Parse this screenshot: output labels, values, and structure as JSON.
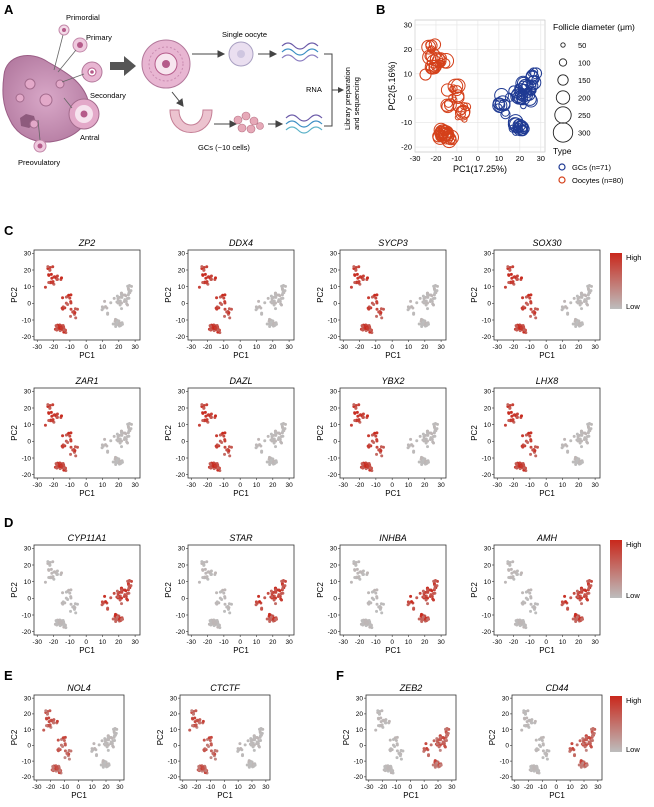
{
  "panel_letters": {
    "a": "A",
    "b": "B",
    "c": "C",
    "d": "D",
    "e": "E",
    "f": "F"
  },
  "schematic": {
    "primordial": "Primordial",
    "primary": "Primary",
    "secondary": "Secondary",
    "antral": "Antral",
    "preovulatory": "Preovulatory",
    "single_oocyte": "Single oocyte",
    "gcs": "GCs (~10 cells)",
    "rna": "RNA",
    "library_line1": "Library preparation",
    "library_line2": "and sequencing"
  },
  "legend_b": {
    "size_title": "Follicle diameter (μm)",
    "sizes": [
      "50",
      "100",
      "150",
      "200",
      "250",
      "300"
    ],
    "type_title": "Type",
    "types": [
      {
        "label": "GCs (n=71)",
        "color": "#1f3a93"
      },
      {
        "label": "Oocytes (n=80)",
        "color": "#d4401a"
      }
    ]
  },
  "scale_legend": {
    "high": "High",
    "low": "Low",
    "high_color": "#c9281c",
    "low_color": "#bdbdbd"
  },
  "chart_data": [
    {
      "type": "scatter",
      "panel": "B",
      "xlabel": "PC1(17.25%)",
      "ylabel": "PC2(5.16%)",
      "xlim": [
        -30,
        32
      ],
      "ylim": [
        -22,
        32
      ],
      "xticks": [
        "-30",
        "-20",
        "-10",
        "0",
        "10",
        "20",
        "30"
      ],
      "yticks": [
        "-20",
        "-10",
        "0",
        "10",
        "20",
        "30"
      ],
      "grid": true,
      "legend": "right",
      "series": [
        {
          "name": "GCs (n=71)",
          "color": "#1f3a93"
        },
        {
          "name": "Oocytes (n=80)",
          "color": "#d4401a"
        }
      ]
    },
    {
      "type": "scatter",
      "panel": "C",
      "gene": "ZP2",
      "xlabel": "PC1",
      "ylabel": "PC2",
      "high": "oocyte"
    },
    {
      "type": "scatter",
      "panel": "C",
      "gene": "DDX4",
      "xlabel": "PC1",
      "ylabel": "PC2",
      "high": "oocyte"
    },
    {
      "type": "scatter",
      "panel": "C",
      "gene": "SYCP3",
      "xlabel": "PC1",
      "ylabel": "PC2",
      "high": "oocyte"
    },
    {
      "type": "scatter",
      "panel": "C",
      "gene": "SOX30",
      "xlabel": "PC1",
      "ylabel": "PC2",
      "high": "oocyte"
    },
    {
      "type": "scatter",
      "panel": "C",
      "gene": "ZAR1",
      "xlabel": "PC1",
      "ylabel": "PC2",
      "high": "oocyte"
    },
    {
      "type": "scatter",
      "panel": "C",
      "gene": "DAZL",
      "xlabel": "PC1",
      "ylabel": "PC2",
      "high": "oocyte"
    },
    {
      "type": "scatter",
      "panel": "C",
      "gene": "YBX2",
      "xlabel": "PC1",
      "ylabel": "PC2",
      "high": "oocyte"
    },
    {
      "type": "scatter",
      "panel": "C",
      "gene": "LHX8",
      "xlabel": "PC1",
      "ylabel": "PC2",
      "high": "oocyte"
    },
    {
      "type": "scatter",
      "panel": "D",
      "gene": "CYP11A1",
      "xlabel": "PC1",
      "ylabel": "PC2",
      "high": "gc"
    },
    {
      "type": "scatter",
      "panel": "D",
      "gene": "STAR",
      "xlabel": "PC1",
      "ylabel": "PC2",
      "high": "gc"
    },
    {
      "type": "scatter",
      "panel": "D",
      "gene": "INHBA",
      "xlabel": "PC1",
      "ylabel": "PC2",
      "high": "gc"
    },
    {
      "type": "scatter",
      "panel": "D",
      "gene": "AMH",
      "xlabel": "PC1",
      "ylabel": "PC2",
      "high": "gc"
    },
    {
      "type": "scatter",
      "panel": "E",
      "gene": "NOL4",
      "xlabel": "PC1",
      "ylabel": "PC2",
      "high": "oocyte_light"
    },
    {
      "type": "scatter",
      "panel": "E",
      "gene": "CTCTF",
      "xlabel": "PC1",
      "ylabel": "PC2",
      "high": "oocyte_light"
    },
    {
      "type": "scatter",
      "panel": "F",
      "gene": "ZEB2",
      "xlabel": "PC1",
      "ylabel": "PC2",
      "high": "gc_light"
    },
    {
      "type": "scatter",
      "panel": "F",
      "gene": "CD44",
      "xlabel": "PC1",
      "ylabel": "PC2",
      "high": "gc_light"
    }
  ],
  "small_axis": {
    "xticks": [
      "-30",
      "-20",
      "-10",
      "0",
      "10",
      "20",
      "30"
    ],
    "yticks": [
      "-20",
      "-10",
      "0",
      "10",
      "20",
      "30"
    ]
  }
}
